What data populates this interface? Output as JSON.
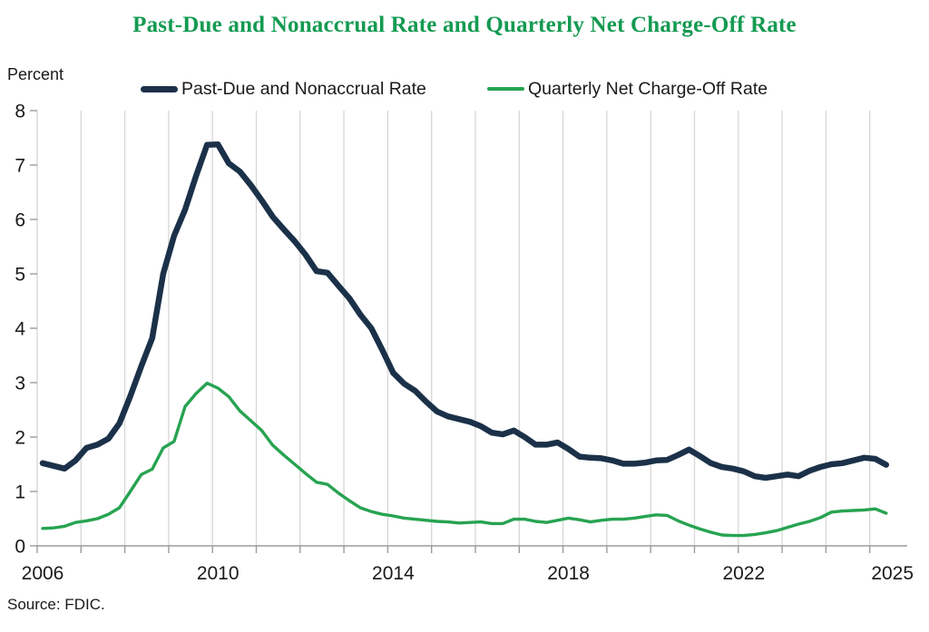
{
  "title": "Past-Due and Nonaccrual Rate and Quarterly Net Charge-Off Rate",
  "y_axis_unit": "Percent",
  "source": "Source: FDIC.",
  "colors": {
    "title_green": "#149a52",
    "line_navy": "#1b3149",
    "line_green": "#27a351",
    "gridline": "#d7d7d7",
    "axis": "#9b9b9b",
    "tick_text": "#1a1a1a"
  },
  "legend": [
    {
      "label": "Past-Due and Nonaccrual Rate",
      "color": "#1b3149",
      "style": "thick"
    },
    {
      "label": "Quarterly Net Charge-Off Rate",
      "color": "#27a351",
      "style": "thin"
    }
  ],
  "chart_data": {
    "type": "line",
    "title": "Past-Due and Nonaccrual Rate and Quarterly Net Charge-Off Rate",
    "ylabel": "Percent",
    "ylim": [
      0,
      8
    ],
    "y_ticks": [
      0,
      1,
      2,
      3,
      4,
      5,
      6,
      7,
      8
    ],
    "x_unit": "quarterly",
    "x_start": 2006.125,
    "x_step": 0.25,
    "x_range_years": [
      2006,
      2025.6
    ],
    "gridline_years": [
      2007,
      2008,
      2009,
      2010,
      2011,
      2012,
      2013,
      2014,
      2015,
      2016,
      2017,
      2018,
      2019,
      2020,
      2021,
      2022,
      2023,
      2024,
      2025
    ],
    "x_tick_labels": [
      {
        "year": 2006,
        "label": "2006"
      },
      {
        "year": 2010,
        "label": "2010"
      },
      {
        "year": 2014,
        "label": "2014"
      },
      {
        "year": 2018,
        "label": "2018"
      },
      {
        "year": 2022,
        "label": "2022"
      },
      {
        "year": 2025,
        "label": "2025"
      }
    ],
    "grid": "vertical-only",
    "legend_position": "top",
    "series": [
      {
        "name": "Past-Due and Nonaccrual Rate",
        "color": "#1b3149",
        "width": 6.5,
        "values": [
          1.52,
          1.47,
          1.42,
          1.57,
          1.8,
          1.86,
          1.97,
          2.25,
          2.75,
          3.3,
          3.82,
          5.0,
          5.7,
          6.18,
          6.8,
          7.37,
          7.38,
          7.03,
          6.88,
          6.63,
          6.35,
          6.05,
          5.82,
          5.6,
          5.35,
          5.05,
          5.02,
          4.78,
          4.55,
          4.25,
          4.0,
          3.6,
          3.18,
          2.98,
          2.85,
          2.65,
          2.47,
          2.38,
          2.33,
          2.28,
          2.2,
          2.08,
          2.05,
          2.12,
          2.0,
          1.86,
          1.86,
          1.9,
          1.78,
          1.64,
          1.62,
          1.61,
          1.57,
          1.51,
          1.51,
          1.53,
          1.57,
          1.58,
          1.67,
          1.77,
          1.65,
          1.52,
          1.45,
          1.42,
          1.37,
          1.28,
          1.25,
          1.28,
          1.31,
          1.28,
          1.38,
          1.45,
          1.5,
          1.52,
          1.57,
          1.62,
          1.6,
          1.49
        ]
      },
      {
        "name": "Quarterly Net Charge-Off Rate",
        "color": "#27a351",
        "width": 3.4,
        "values": [
          0.32,
          0.33,
          0.36,
          0.43,
          0.46,
          0.5,
          0.58,
          0.7,
          1.0,
          1.31,
          1.41,
          1.8,
          1.92,
          2.56,
          2.8,
          2.99,
          2.9,
          2.74,
          2.48,
          2.3,
          2.12,
          1.85,
          1.67,
          1.5,
          1.33,
          1.17,
          1.13,
          0.97,
          0.83,
          0.7,
          0.63,
          0.58,
          0.55,
          0.51,
          0.49,
          0.47,
          0.45,
          0.44,
          0.42,
          0.43,
          0.44,
          0.41,
          0.41,
          0.49,
          0.49,
          0.45,
          0.43,
          0.47,
          0.51,
          0.48,
          0.44,
          0.47,
          0.49,
          0.49,
          0.51,
          0.54,
          0.57,
          0.56,
          0.46,
          0.38,
          0.31,
          0.25,
          0.2,
          0.19,
          0.19,
          0.21,
          0.24,
          0.28,
          0.34,
          0.4,
          0.45,
          0.52,
          0.62,
          0.64,
          0.65,
          0.66,
          0.68,
          0.6
        ]
      }
    ]
  }
}
